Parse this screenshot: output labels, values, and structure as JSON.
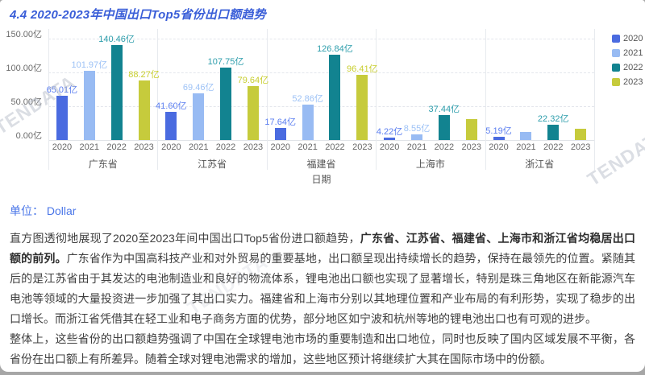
{
  "header": {
    "title": "4.4 2020-2023年中国出口Top5省份出口额趋势"
  },
  "unit": {
    "label": "单位： Dollar"
  },
  "watermark": {
    "text": "TENDATA"
  },
  "chart_data": {
    "type": "bar",
    "title": "4.4 2020-2023年中国出口Top5省份出口额趋势",
    "xlabel": "日期",
    "ylabel": "",
    "unit": "亿",
    "ylim": [
      0,
      150
    ],
    "grid": true,
    "legend_position": "right",
    "ytick_labels": [
      "150.00亿",
      "100.00亿",
      "50.00亿",
      "0.00亿"
    ],
    "categories": [
      "广东省",
      "江苏省",
      "福建省",
      "上海市",
      "浙江省"
    ],
    "group_years": [
      "2020",
      "2021",
      "2022",
      "2023"
    ],
    "series": [
      {
        "name": "2020",
        "color": "#4A6BE0",
        "label_color": "#5B7EF0",
        "values": [
          65.01,
          41.6,
          17.64,
          4.22,
          5.19
        ],
        "labels": [
          "65.01亿",
          "41.60亿",
          "17.64亿",
          "4.22亿",
          "5.19亿"
        ]
      },
      {
        "name": "2021",
        "color": "#98BBF3",
        "label_color": "#9DC2F6",
        "values": [
          101.97,
          69.46,
          52.86,
          8.55,
          12.0
        ],
        "labels": [
          "101.97亿",
          "69.46亿",
          "52.86亿",
          "8.55亿",
          ""
        ]
      },
      {
        "name": "2022",
        "color": "#128390",
        "label_color": "#2E9EAC",
        "values": [
          140.46,
          107.75,
          126.84,
          37.44,
          22.32
        ],
        "labels": [
          "140.46亿",
          "107.75亿",
          "126.84亿",
          "37.44亿",
          "22.32亿"
        ]
      },
      {
        "name": "2023",
        "color": "#C6CB3C",
        "label_color": "#C8CE2F",
        "values": [
          88.27,
          79.64,
          96.41,
          31.0,
          17.0
        ],
        "labels": [
          "88.27亿",
          "79.64亿",
          "96.41亿",
          "",
          ""
        ]
      }
    ]
  },
  "paragraphs": {
    "p1_normal1": "直方图透彻地展现了2020至2023年间中国出口Top5省份进口额趋势，",
    "p1_bold": "广东省、江苏省、福建省、上海市和浙江省均稳居出口额的前列。",
    "p1_normal2": "广东省作为中国高科技产业和对外贸易的重要基地，出口额呈现出持续增长的趋势，保持在最领先的位置。紧随其后的是江苏省由于其发达的电池制造业和良好的物流体系，锂电池出口额也实现了显著增长，特别是珠三角地区在新能源汽车电池等领域的大量投资进一步加强了其出口实力。福建省和上海市分别以其地理位置和产业布局的有利形势，实现了稳步的出口增长。而浙江省凭借其在轻工业和电子商务方面的优势，部分地区如宁波和杭州等地的锂电池出口也有可观的进步。",
    "p2": "整体上，这些省份的出口额趋势强调了中国在全球锂电池市场的重要制造和出口地位，同时也反映了国内区域发展不平衡，各省份在出口额上有所差异。随着全球对锂电池需求的增加，这些地区预计将继续扩大其在国际市场中的份额。"
  }
}
